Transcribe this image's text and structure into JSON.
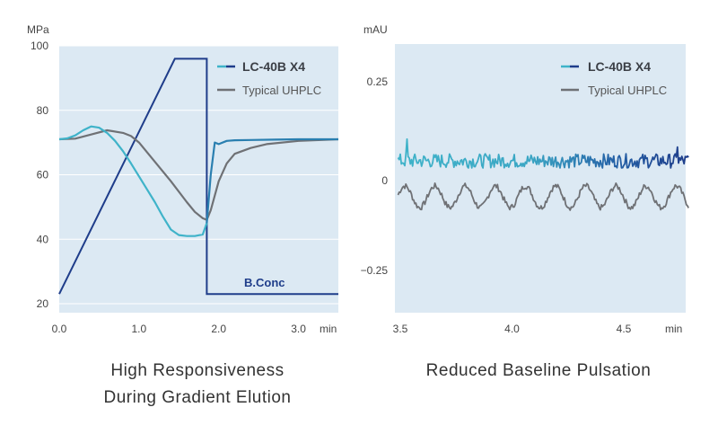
{
  "colors": {
    "panel_bg": "#dce9f3",
    "lc40b_light": "#3fb3c9",
    "lc40b_dark": "#1f3d8a",
    "typical": "#6f7175",
    "bconc": "#1f3d8a"
  },
  "chart_data": [
    {
      "type": "line",
      "title": "High Responsiveness During Gradient Elution",
      "caption_lines": [
        "High Responsiveness",
        "During Gradient Elution"
      ],
      "xlabel": "min",
      "ylabel": "MPa",
      "xlim": [
        0.0,
        3.5
      ],
      "ylim": [
        20,
        100
      ],
      "x_ticks": [
        0.0,
        1.0,
        2.0,
        3.0
      ],
      "x_tick_labels": [
        "0.0",
        "1.0",
        "2.0",
        "3.0"
      ],
      "y_ticks": [
        20,
        40,
        60,
        80,
        100
      ],
      "y_tick_labels": [
        "20",
        "40",
        "60",
        "80",
        "100"
      ],
      "legend": [
        "LC-40B X4",
        "Typical UHPLC"
      ],
      "annotation": "B.Conc",
      "series": [
        {
          "name": "LC-40B X4",
          "x": [
            0.0,
            0.1,
            0.2,
            0.3,
            0.4,
            0.5,
            0.6,
            0.7,
            0.8,
            0.9,
            1.0,
            1.1,
            1.2,
            1.3,
            1.4,
            1.5,
            1.6,
            1.7,
            1.8,
            1.85,
            1.9,
            1.95,
            2.0,
            2.1,
            2.2,
            2.4,
            2.7,
            3.0,
            3.2,
            3.5
          ],
          "y": [
            71,
            71.3,
            72.2,
            73.8,
            75.0,
            74.6,
            73.0,
            70.5,
            67.3,
            63.5,
            59.5,
            55.5,
            51.5,
            47.0,
            43.0,
            41.3,
            41.0,
            41.0,
            41.5,
            45,
            60,
            70,
            69.5,
            70.5,
            70.7,
            70.8,
            70.9,
            71,
            71,
            71
          ]
        },
        {
          "name": "Typical UHPLC",
          "x": [
            0.0,
            0.2,
            0.4,
            0.6,
            0.8,
            0.9,
            1.0,
            1.2,
            1.4,
            1.6,
            1.7,
            1.8,
            1.85,
            1.9,
            2.0,
            2.1,
            2.2,
            2.4,
            2.6,
            3.0,
            3.5
          ],
          "y": [
            71,
            71.2,
            72.5,
            73.8,
            73.0,
            72.0,
            70.0,
            64.0,
            58.0,
            51.5,
            48.5,
            46.5,
            46.0,
            49.0,
            58.0,
            63.5,
            66.5,
            68.3,
            69.5,
            70.5,
            71
          ]
        },
        {
          "name": "B.Conc",
          "x": [
            0.0,
            1.45,
            1.85,
            1.85,
            3.5
          ],
          "y": [
            23,
            96,
            96,
            23,
            23
          ]
        }
      ]
    },
    {
      "type": "line",
      "title": "Reduced Baseline Pulsation",
      "caption_lines": [
        "Reduced Baseline Pulsation"
      ],
      "xlabel": "min",
      "ylabel": "mAU",
      "xlim": [
        3.5,
        4.8
      ],
      "ylim": [
        -0.35,
        0.35
      ],
      "x_ticks": [
        3.5,
        4.0,
        4.5
      ],
      "x_tick_labels": [
        "3.5",
        "4.0",
        "4.5"
      ],
      "y_ticks": [
        0.25,
        0,
        -0.25
      ],
      "y_tick_labels": [
        "0.25",
        "0",
        "−0.25"
      ],
      "legend": [
        "LC-40B X4",
        "Typical UHPLC"
      ],
      "series": [
        {
          "name": "LC-40B X4",
          "baseline": 0.05,
          "noise_amplitude": 0.018,
          "description": "flat noisy baseline"
        },
        {
          "name": "Typical UHPLC",
          "baseline": -0.045,
          "oscillation_amplitude": 0.03,
          "oscillation_period_min": 0.135,
          "noise_amplitude": 0.008
        }
      ]
    }
  ]
}
